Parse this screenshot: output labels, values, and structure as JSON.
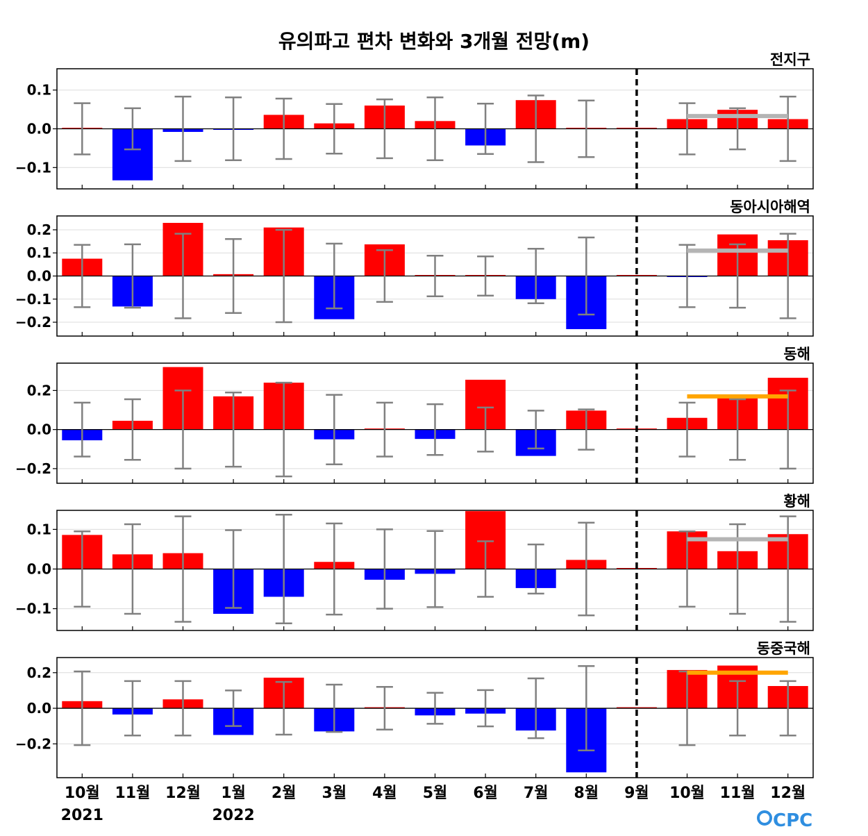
{
  "title": "유의파고 편차 변화와 3개월 전망(m)",
  "logo_text": "CPC",
  "colors": {
    "positive": "#ff0000",
    "negative": "#0000ff",
    "errorbar": "#808080",
    "forecast_gray": "#b4b4b4",
    "forecast_orange": "#ffa500"
  },
  "x_tick_labels": [
    "10월",
    "11월",
    "12월",
    "1월",
    "2월",
    "3월",
    "4월",
    "5월",
    "6월",
    "7월",
    "8월",
    "9월",
    "10월",
    "11월",
    "12월"
  ],
  "x_year_labels": [
    {
      "index": 0,
      "label": "2021"
    },
    {
      "index": 3,
      "label": "2022"
    }
  ],
  "chart_data": [
    {
      "type": "bar",
      "panel_label": "전지구",
      "ylim": [
        -0.155,
        0.155
      ],
      "yticks": [
        -0.1,
        0.0,
        0.1
      ],
      "ytick_labels": [
        "−0.1",
        "0.0",
        "0.1"
      ],
      "grid": true,
      "values": [
        0.002,
        -0.133,
        -0.008,
        -0.002,
        0.036,
        0.014,
        0.06,
        0.02,
        -0.043,
        0.074,
        0.0,
        0.0,
        0.025,
        0.049,
        0.025
      ],
      "error": [
        0.066,
        0.053,
        0.083,
        0.081,
        0.078,
        0.064,
        0.076,
        0.081,
        0.065,
        0.086,
        0.073,
        0,
        0.066,
        0.053,
        0.083
      ],
      "forecast_line": {
        "value": 0.033,
        "color": "gray"
      }
    },
    {
      "type": "bar",
      "panel_label": "동아시아해역",
      "ylim": [
        -0.26,
        0.26
      ],
      "yticks": [
        -0.2,
        -0.1,
        0.0,
        0.1,
        0.2
      ],
      "ytick_labels": [
        "−0.2",
        "−0.1",
        "0.0",
        "0.1",
        "0.2"
      ],
      "grid": true,
      "values": [
        0.075,
        -0.132,
        0.23,
        0.008,
        0.21,
        -0.187,
        0.137,
        0.0,
        0.0,
        -0.1,
        -0.23,
        0.0,
        -0.003,
        0.18,
        0.155
      ],
      "error": [
        0.135,
        0.137,
        0.183,
        0.16,
        0.2,
        0.14,
        0.112,
        0.088,
        0.085,
        0.118,
        0.167,
        0,
        0.135,
        0.137,
        0.183
      ],
      "forecast_line": {
        "value": 0.11,
        "color": "gray"
      }
    },
    {
      "type": "bar",
      "panel_label": "동해",
      "ylim": [
        -0.275,
        0.34
      ],
      "yticks": [
        -0.2,
        0.0,
        0.2
      ],
      "ytick_labels": [
        "−0.2",
        "0.0",
        "0.2"
      ],
      "grid": true,
      "values": [
        -0.055,
        0.045,
        0.32,
        0.17,
        0.24,
        -0.05,
        0.0,
        -0.048,
        0.255,
        -0.135,
        0.097,
        0.0,
        0.06,
        0.17,
        0.265
      ],
      "error": [
        0.138,
        0.155,
        0.2,
        0.19,
        0.24,
        0.178,
        0.138,
        0.13,
        0.113,
        0.097,
        0.103,
        0,
        0.138,
        0.155,
        0.2
      ],
      "forecast_line": {
        "value": 0.17,
        "color": "orange"
      }
    },
    {
      "type": "bar",
      "panel_label": "황해",
      "ylim": [
        -0.155,
        0.148
      ],
      "yticks": [
        -0.1,
        0.0,
        0.1
      ],
      "ytick_labels": [
        "−0.1",
        "0.0",
        "0.1"
      ],
      "grid": true,
      "values": [
        0.086,
        0.037,
        0.04,
        -0.113,
        -0.07,
        0.018,
        -0.027,
        -0.012,
        0.146,
        -0.048,
        0.023,
        0.0,
        0.095,
        0.045,
        0.088
      ],
      "error": [
        0.095,
        0.113,
        0.133,
        0.098,
        0.137,
        0.115,
        0.1,
        0.096,
        0.07,
        0.062,
        0.117,
        0,
        0.095,
        0.113,
        0.133
      ],
      "forecast_line": {
        "value": 0.075,
        "color": "gray"
      }
    },
    {
      "type": "bar",
      "panel_label": "동중국해",
      "ylim": [
        -0.39,
        0.285
      ],
      "yticks": [
        -0.2,
        0.0,
        0.2
      ],
      "ytick_labels": [
        "−0.2",
        "0.0",
        "0.2"
      ],
      "grid": true,
      "values": [
        0.04,
        -0.035,
        0.05,
        -0.15,
        0.172,
        -0.13,
        0.0,
        -0.04,
        -0.03,
        -0.125,
        -0.36,
        0.0,
        0.215,
        0.24,
        0.125
      ],
      "error": [
        0.207,
        0.153,
        0.153,
        0.1,
        0.148,
        0.133,
        0.12,
        0.087,
        0.102,
        0.168,
        0.237,
        0,
        0.207,
        0.153,
        0.153
      ],
      "forecast_line": {
        "value": 0.2,
        "color": "orange"
      }
    }
  ]
}
